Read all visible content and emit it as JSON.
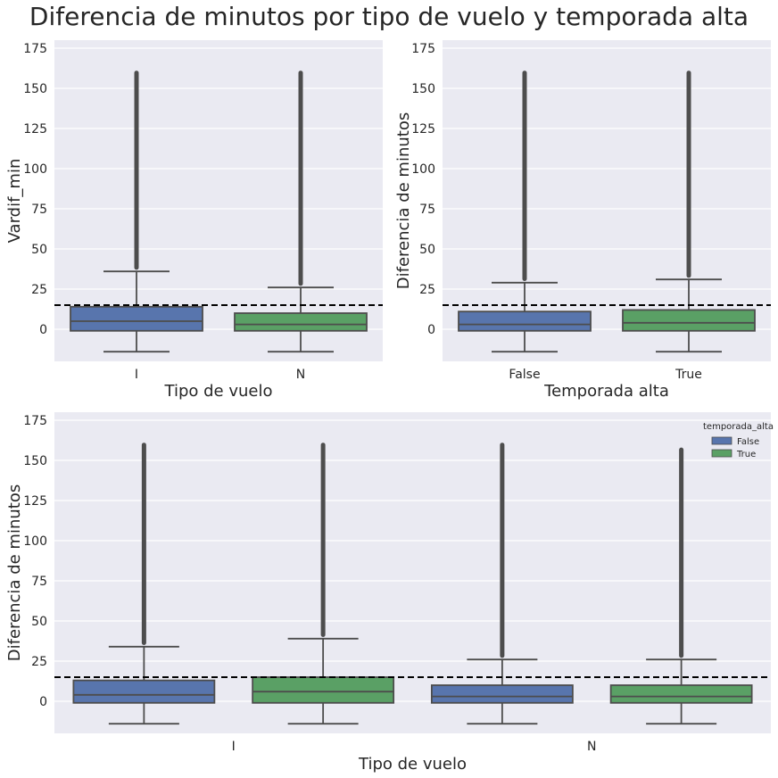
{
  "figure": {
    "title": "Diferencia de minutos por tipo de vuelo y temporada alta",
    "background": "#ffffff",
    "axes_facecolor": "#eaeaf2",
    "grid_color": "#ffffff",
    "line_color": "#4d4d4d",
    "reference_line_color": "#000000"
  },
  "chart_data": [
    {
      "type": "boxplot",
      "xlabel": "Tipo de vuelo",
      "ylabel": "Vardif_min",
      "ylim": [
        -20,
        180
      ],
      "yticks": [
        0,
        25,
        50,
        75,
        100,
        125,
        150,
        175
      ],
      "grid": true,
      "reference_line": 15,
      "categories": [
        "I",
        "N"
      ],
      "boxes": [
        {
          "category": "I",
          "color": "#5875ad",
          "whisker_low": -14,
          "q1": -1,
          "median": 5,
          "q3": 14,
          "whisker_high": 36,
          "outlier_min": 37,
          "outlier_max": 161
        },
        {
          "category": "N",
          "color": "#5aa065",
          "whisker_low": -14,
          "q1": -1,
          "median": 3,
          "q3": 10,
          "whisker_high": 26,
          "outlier_min": 27,
          "outlier_max": 161
        }
      ]
    },
    {
      "type": "boxplot",
      "xlabel": "Temporada alta",
      "ylabel": "Diferencia de minutos",
      "ylim": [
        -20,
        180
      ],
      "yticks": [
        0,
        25,
        50,
        75,
        100,
        125,
        150,
        175
      ],
      "grid": true,
      "reference_line": 15,
      "categories": [
        "False",
        "True"
      ],
      "boxes": [
        {
          "category": "False",
          "color": "#5875ad",
          "whisker_low": -14,
          "q1": -1,
          "median": 3,
          "q3": 11,
          "whisker_high": 29,
          "outlier_min": 30,
          "outlier_max": 161
        },
        {
          "category": "True",
          "color": "#5aa065",
          "whisker_low": -14,
          "q1": -1,
          "median": 4,
          "q3": 12,
          "whisker_high": 31,
          "outlier_min": 32,
          "outlier_max": 161
        }
      ]
    },
    {
      "type": "boxplot",
      "xlabel": "Tipo de vuelo",
      "ylabel": "Diferencia de minutos",
      "ylim": [
        -20,
        180
      ],
      "yticks": [
        0,
        25,
        50,
        75,
        100,
        125,
        150,
        175
      ],
      "grid": true,
      "reference_line": 15,
      "categories": [
        "I",
        "N"
      ],
      "legend": {
        "title": "temporada_alta",
        "placement": "top-right",
        "entries": [
          {
            "label": "False",
            "color": "#5875ad"
          },
          {
            "label": "True",
            "color": "#5aa065"
          }
        ]
      },
      "boxes": [
        {
          "category": "I",
          "hue": "False",
          "color": "#5875ad",
          "whisker_low": -14,
          "q1": -1,
          "median": 4,
          "q3": 13,
          "whisker_high": 34,
          "outlier_min": 35,
          "outlier_max": 161
        },
        {
          "category": "I",
          "hue": "True",
          "color": "#5aa065",
          "whisker_low": -14,
          "q1": -1,
          "median": 6,
          "q3": 15,
          "whisker_high": 39,
          "outlier_min": 40,
          "outlier_max": 161
        },
        {
          "category": "N",
          "hue": "False",
          "color": "#5875ad",
          "whisker_low": -14,
          "q1": -1,
          "median": 3,
          "q3": 10,
          "whisker_high": 26,
          "outlier_min": 27,
          "outlier_max": 161
        },
        {
          "category": "N",
          "hue": "True",
          "color": "#5aa065",
          "whisker_low": -14,
          "q1": -1,
          "median": 3,
          "q3": 10,
          "whisker_high": 26,
          "outlier_min": 27,
          "outlier_max": 158
        }
      ]
    }
  ]
}
